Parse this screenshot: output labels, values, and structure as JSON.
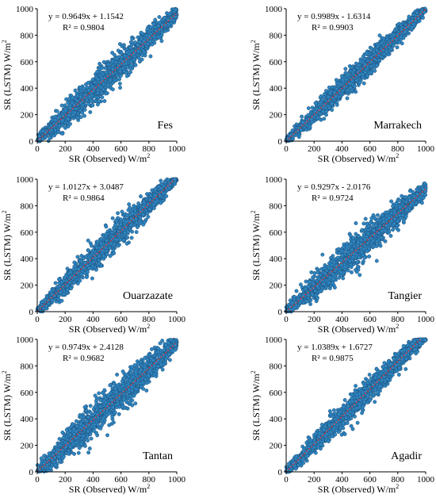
{
  "marker_fill": "#2e86c1",
  "marker_stroke": "#1f4e79",
  "trend_color": "#e8312a",
  "chart_data": [
    {
      "type": "scatter",
      "city": "Fes",
      "equation": "y = 0.9649x + 1.1542",
      "r2": "R² = 0.9804",
      "slope": 0.9649,
      "intercept": 1.1542,
      "xlabel": "SR (Observed) W/m",
      "ylabel": "SR (LSTM) W/m",
      "xlim": [
        0,
        1000
      ],
      "ylim": [
        0,
        1000
      ],
      "ticks": [
        0,
        200,
        400,
        600,
        800,
        1000
      ],
      "n_points": 1500,
      "scatter_sd": 60
    },
    {
      "type": "scatter",
      "city": "Marrakech",
      "equation": "y = 0.9989x - 1.6314",
      "r2": "R² = 0.9903",
      "slope": 0.9989,
      "intercept": -1.6314,
      "xlabel": "SR (Observed) W/m",
      "ylabel": "SR (LSTM) W/m",
      "xlim": [
        0,
        1000
      ],
      "ylim": [
        0,
        1000
      ],
      "ticks": [
        0,
        200,
        400,
        600,
        800,
        1000
      ],
      "n_points": 1500,
      "scatter_sd": 45
    },
    {
      "type": "scatter",
      "city": "Ouarzazate",
      "equation": "y = 1.0127x + 3.0487",
      "r2": "R² = 0.9864",
      "slope": 1.0127,
      "intercept": 3.0487,
      "xlabel": "SR (Observed) W/m",
      "ylabel": "SR (LSTM) W/m",
      "xlim": [
        0,
        1000
      ],
      "ylim": [
        0,
        1000
      ],
      "ticks": [
        0,
        200,
        400,
        600,
        800,
        1000
      ],
      "n_points": 1500,
      "scatter_sd": 52
    },
    {
      "type": "scatter",
      "city": "Tangier",
      "equation": "y = 0.9297x - 2.0176",
      "r2": "R² = 0.9724",
      "slope": 0.9297,
      "intercept": -2.0176,
      "xlabel": "SR (Observed) W/m",
      "ylabel": "SR (LSTM) W/m",
      "xlim": [
        0,
        1000
      ],
      "ylim": [
        0,
        1000
      ],
      "ticks": [
        0,
        200,
        400,
        600,
        800,
        1000
      ],
      "n_points": 1500,
      "scatter_sd": 65
    },
    {
      "type": "scatter",
      "city": "Tantan",
      "equation": "y = 0.9749x + 2.4128",
      "r2": "R² = 0.9682",
      "slope": 0.9749,
      "intercept": 2.4128,
      "xlabel": "SR (Observed) W/m",
      "ylabel": "SR (LSTM) W/m",
      "xlim": [
        0,
        1000
      ],
      "ylim": [
        0,
        1000
      ],
      "ticks": [
        0,
        200,
        400,
        600,
        800,
        1000
      ],
      "n_points": 1500,
      "scatter_sd": 70
    },
    {
      "type": "scatter",
      "city": "Agadir",
      "equation": "y = 1.0389x + 1.6727",
      "r2": "R² = 0.9875",
      "slope": 1.0389,
      "intercept": 1.6727,
      "xlabel": "SR (Observed) W/m",
      "ylabel": "SR (LSTM) W/m",
      "xlim": [
        0,
        1000
      ],
      "ylim": [
        0,
        1000
      ],
      "ticks": [
        0,
        200,
        400,
        600,
        800,
        1000
      ],
      "n_points": 1500,
      "scatter_sd": 50
    }
  ]
}
